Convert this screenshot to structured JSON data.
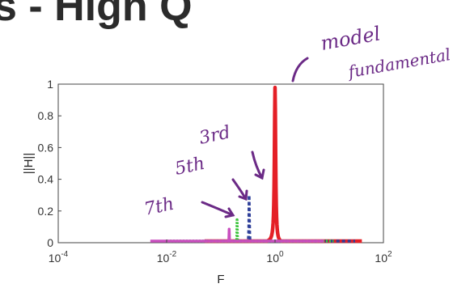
{
  "slide_title": "s - High Q",
  "chart_data": {
    "type": "line",
    "xscale": "log",
    "xlim": [
      0.0001,
      100
    ],
    "ylim": [
      0,
      1
    ],
    "xlabel": "F",
    "ylabel": "||H||",
    "x_ticks": [
      {
        "base": "10",
        "exp": "-4",
        "value": 0.0001
      },
      {
        "base": "10",
        "exp": "-2",
        "value": 0.01
      },
      {
        "base": "10",
        "exp": "0",
        "value": 1
      },
      {
        "base": "10",
        "exp": "2",
        "value": 100
      }
    ],
    "y_ticks": [
      "0",
      "0.2",
      "0.4",
      "0.6",
      "0.8",
      "1"
    ],
    "y_tick_values": [
      0,
      0.2,
      0.4,
      0.6,
      0.8,
      1
    ],
    "series": [
      {
        "color": "#e41f26",
        "style": "solid",
        "peak_x": 1.0,
        "peak_y": 0.98,
        "width": 0.03,
        "xmin": 0.05,
        "xmax": 40
      },
      {
        "color": "#2e3f99",
        "style": "dashed",
        "peak_x": 0.333,
        "peak_y": 0.32,
        "width": 0.01,
        "xmin": 0.05,
        "xmax": 30
      },
      {
        "color": "#3cc43c",
        "style": "dotted",
        "peak_x": 0.2,
        "peak_y": 0.2,
        "width": 0.006,
        "xmin": 0.01,
        "xmax": 12
      },
      {
        "color": "#c94fbf",
        "style": "solid",
        "peak_x": 0.1429,
        "peak_y": 0.14,
        "width": 0.004,
        "xmin": 0.005,
        "xmax": 8
      }
    ],
    "grid": false,
    "annotations": [
      {
        "text": "model",
        "color": "#6b2a86"
      },
      {
        "text": "fundamental",
        "color": "#6b2a86"
      },
      {
        "text": "3rd",
        "color": "#6b2a86"
      },
      {
        "text": "5th",
        "color": "#6b2a86"
      },
      {
        "text": "7th",
        "color": "#6b2a86"
      }
    ]
  }
}
